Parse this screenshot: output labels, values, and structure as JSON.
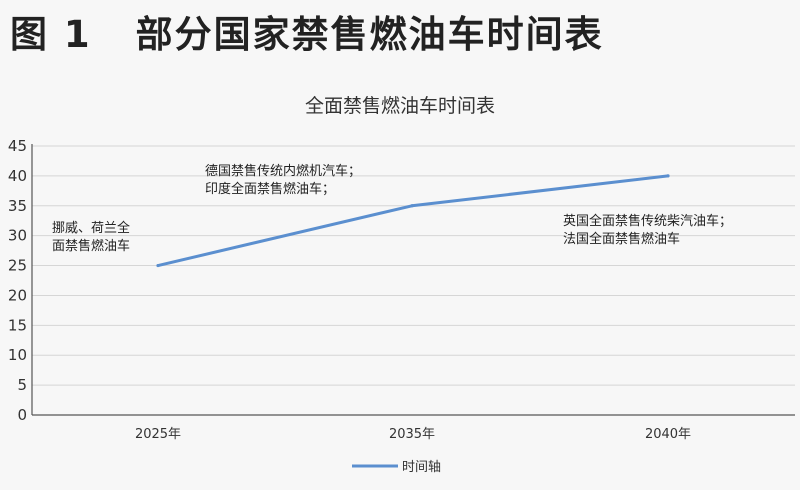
{
  "figure": {
    "number": "图 1",
    "title": "部分国家禁售燃油车时间表"
  },
  "chart_data": {
    "type": "line",
    "title": "全面禁售燃油车时间表",
    "categories": [
      "2025年",
      "2035年",
      "2040年"
    ],
    "series": [
      {
        "name": "时间轴",
        "color": "#5b8fcf",
        "values": [
          25,
          35,
          40
        ]
      }
    ],
    "ylim": [
      0,
      45
    ],
    "yticks": [
      0,
      5,
      10,
      15,
      20,
      25,
      30,
      35,
      40,
      45
    ],
    "grid": true,
    "legend": "bottom",
    "annotations": [
      {
        "category": "2025年",
        "lines": [
          "挪威、荷兰全",
          "面禁售燃油车"
        ]
      },
      {
        "category": "2035年",
        "lines": [
          "德国禁售传统内燃机汽车；",
          "印度全面禁售燃油车；"
        ]
      },
      {
        "category": "2040年",
        "lines": [
          "英国全面禁售传统柴汽油车；",
          "法国全面禁售燃油车"
        ]
      }
    ]
  }
}
